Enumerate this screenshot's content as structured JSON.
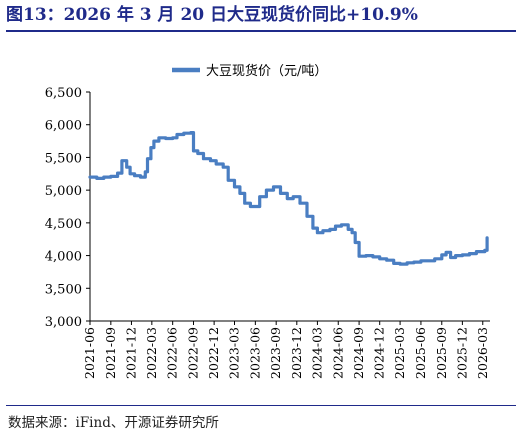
{
  "title": "图13：2026 年 3 月 20 日大豆现货价同比+10.9%",
  "source": "数据来源：iFind、开源证券研究所",
  "colors": {
    "title": "#1f2a8a",
    "line": "#4a7ec2",
    "axis": "#000000"
  },
  "chart_data": {
    "type": "line",
    "legend_position": "top-center",
    "grid": false,
    "ylim": [
      3000,
      6500
    ],
    "y_ticks": [
      "3,000",
      "3,500",
      "4,000",
      "4,500",
      "5,000",
      "5,500",
      "6,000",
      "6,500"
    ],
    "x_ticks": [
      "2021-06",
      "2021-09",
      "2021-12",
      "2022-03",
      "2022-06",
      "2022-09",
      "2022-12",
      "2023-03",
      "2023-06",
      "2023-09",
      "2023-12",
      "2024-03",
      "2024-06",
      "2024-09",
      "2024-12",
      "2025-03",
      "2025-06",
      "2025-09",
      "2025-12",
      "2026-03"
    ],
    "series": [
      {
        "name": "大豆现货价（元/吨）",
        "points": [
          [
            "2021-06-01",
            5200
          ],
          [
            "2021-07-01",
            5180
          ],
          [
            "2021-08-01",
            5200
          ],
          [
            "2021-09-01",
            5210
          ],
          [
            "2021-10-01",
            5260
          ],
          [
            "2021-10-20",
            5450
          ],
          [
            "2021-11-10",
            5350
          ],
          [
            "2021-11-25",
            5250
          ],
          [
            "2021-12-15",
            5220
          ],
          [
            "2022-01-10",
            5200
          ],
          [
            "2022-01-31",
            5280
          ],
          [
            "2022-02-10",
            5480
          ],
          [
            "2022-02-25",
            5650
          ],
          [
            "2022-03-10",
            5750
          ],
          [
            "2022-04-01",
            5800
          ],
          [
            "2022-05-01",
            5790
          ],
          [
            "2022-06-01",
            5800
          ],
          [
            "2022-06-20",
            5850
          ],
          [
            "2022-07-20",
            5870
          ],
          [
            "2022-08-20",
            5880
          ],
          [
            "2022-09-01",
            5600
          ],
          [
            "2022-09-20",
            5560
          ],
          [
            "2022-10-15",
            5480
          ],
          [
            "2022-11-15",
            5450
          ],
          [
            "2022-12-10",
            5400
          ],
          [
            "2023-01-10",
            5350
          ],
          [
            "2023-02-01",
            5150
          ],
          [
            "2023-03-01",
            5050
          ],
          [
            "2023-03-25",
            4950
          ],
          [
            "2023-04-15",
            4800
          ],
          [
            "2023-05-10",
            4750
          ],
          [
            "2023-06-01",
            4750
          ],
          [
            "2023-06-20",
            4900
          ],
          [
            "2023-07-20",
            5000
          ],
          [
            "2023-08-20",
            5050
          ],
          [
            "2023-09-20",
            4950
          ],
          [
            "2023-10-20",
            4870
          ],
          [
            "2023-11-15",
            4900
          ],
          [
            "2023-12-15",
            4800
          ],
          [
            "2024-01-15",
            4600
          ],
          [
            "2024-02-10",
            4420
          ],
          [
            "2024-03-01",
            4350
          ],
          [
            "2024-03-25",
            4380
          ],
          [
            "2024-04-25",
            4400
          ],
          [
            "2024-05-20",
            4450
          ],
          [
            "2024-06-15",
            4470
          ],
          [
            "2024-07-15",
            4400
          ],
          [
            "2024-08-01",
            4350
          ],
          [
            "2024-08-15",
            4200
          ],
          [
            "2024-09-01",
            3990
          ],
          [
            "2024-10-01",
            4000
          ],
          [
            "2024-11-01",
            3980
          ],
          [
            "2024-12-01",
            3950
          ],
          [
            "2025-01-01",
            3930
          ],
          [
            "2025-02-01",
            3880
          ],
          [
            "2025-03-01",
            3870
          ],
          [
            "2025-04-01",
            3890
          ],
          [
            "2025-05-01",
            3900
          ],
          [
            "2025-06-01",
            3920
          ],
          [
            "2025-07-01",
            3920
          ],
          [
            "2025-08-01",
            3950
          ],
          [
            "2025-09-01",
            4010
          ],
          [
            "2025-09-20",
            4050
          ],
          [
            "2025-10-10",
            3970
          ],
          [
            "2025-11-01",
            4000
          ],
          [
            "2025-12-01",
            4010
          ],
          [
            "2026-01-01",
            4030
          ],
          [
            "2026-02-01",
            4060
          ],
          [
            "2026-03-10",
            4080
          ],
          [
            "2026-03-20",
            4270
          ]
        ]
      }
    ]
  }
}
